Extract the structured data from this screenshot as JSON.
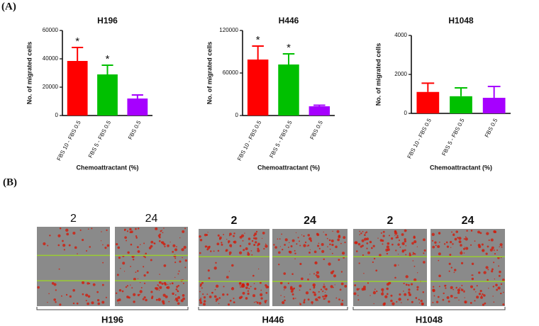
{
  "panel_a": {
    "label": "(A)"
  },
  "chart_data": [
    {
      "type": "bar",
      "title": "H196",
      "y_label": "No. of migrated cells",
      "x_label": "Chemoattractant (%)",
      "categories": [
        "FBS 10 - FBS 0.5",
        "FBS 5 - FBS 0.5",
        "FBS 0.5"
      ],
      "values": [
        38500,
        29000,
        12000
      ],
      "errors": [
        9500,
        6500,
        2500
      ],
      "annotations": [
        "*",
        "*",
        null
      ],
      "colors": [
        "#ff0000",
        "#00c000",
        "#a600ff"
      ],
      "ylim": [
        0,
        60000
      ],
      "yticks": [
        0,
        20000,
        40000,
        60000
      ]
    },
    {
      "type": "bar",
      "title": "H446",
      "y_label": "No. of migrated cells",
      "x_label": "Chemoattractant (%)",
      "categories": [
        "FBS 10 - FBS 0.5",
        "FBS 5 - FBS 0.5",
        "FBS 0.5"
      ],
      "values": [
        79000,
        72000,
        13000
      ],
      "errors": [
        19000,
        15000,
        1500
      ],
      "annotations": [
        "*",
        "*",
        null
      ],
      "colors": [
        "#ff0000",
        "#00c000",
        "#a600ff"
      ],
      "ylim": [
        0,
        120000
      ],
      "yticks": [
        0,
        60000,
        120000
      ]
    },
    {
      "type": "bar",
      "title": "H1048",
      "y_label": "No. of migrated cells",
      "x_label": "Chemoattractant (%)",
      "categories": [
        "FBS 10 - FBS 0.5",
        "FBS 5 - FBS 0.5",
        "FBS 0.5"
      ],
      "values": [
        1100,
        880,
        800
      ],
      "errors": [
        450,
        430,
        580
      ],
      "annotations": [
        null,
        null,
        null
      ],
      "colors": [
        "#ff0000",
        "#00c000",
        "#a600ff"
      ],
      "ylim": [
        0,
        4000
      ],
      "yticks": [
        0,
        2000,
        4000
      ]
    }
  ],
  "panel_b": {
    "label": "(B)",
    "groups": [
      {
        "name": "H196",
        "times": [
          "2",
          "24"
        ]
      },
      {
        "name": "H446",
        "times": [
          "2",
          "24"
        ]
      },
      {
        "name": "H1048",
        "times": [
          "2",
          "24"
        ]
      }
    ]
  }
}
